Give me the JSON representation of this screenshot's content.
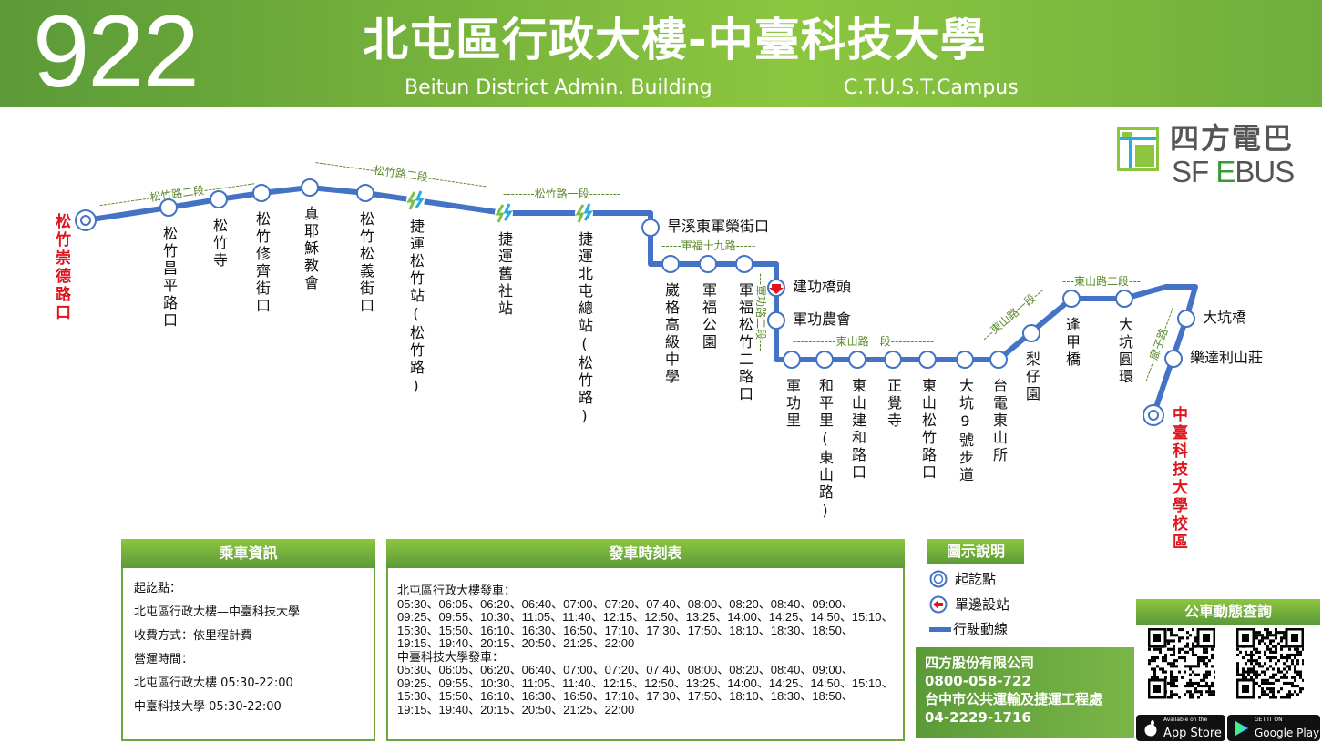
{
  "header": {
    "route_number": "922",
    "title": "北屯區行政大樓-中臺科技大學",
    "origin_en": "Beitun District Admin. Building",
    "destination_en": "C.T.U.S.T.Campus"
  },
  "logo": {
    "zh": "四方電巴",
    "en_prefix": "SF ",
    "en_e": "E",
    "en_suffix": "BUS"
  },
  "route": {
    "line_color": "#4472c4",
    "start": "松竹崇德路口",
    "end": "中臺科技大學校區",
    "stations": [
      "松竹昌平路口",
      "松竹寺",
      "松竹修齊街口",
      "真耶穌教會",
      "松竹松義街口",
      "捷運松竹站(松竹路)",
      "捷運舊社站",
      "捷運北屯總站(松竹路)",
      "旱溪東軍榮街口",
      "崴格高級中學",
      "軍福公園",
      "軍福松竹二路口",
      "建功橋頭",
      "軍功農會",
      "軍功里",
      "和平里(東山路)",
      "東山建和路口",
      "正覺寺",
      "東山松竹路口",
      "大坑9號步道",
      "台電東山所",
      "梨仔園",
      "逢甲橋",
      "大坑圓環",
      "大坑橋",
      "樂達利山莊"
    ],
    "one_way_station": "建功橋頭",
    "mrt_stations": [
      "捷運松竹站(松竹路)",
      "捷運舊社站",
      "捷運北屯總站(松竹路)"
    ],
    "roads": [
      "-------------松竹路二段-------------",
      "---------------松竹路二段---------------",
      "--------松竹路一段--------",
      "-----軍福十九路-----",
      "---軍功路二段---",
      "-----------東山路一段-----------",
      "---東山路一段---",
      "---東山路二段---",
      "------廍子路------"
    ]
  },
  "ride_info": {
    "heading": "乘車資訊",
    "lines": [
      "起訖點：",
      "北屯區行政大樓—中臺科技大學",
      "收費方式：依里程計費",
      "營運時間：",
      "北屯區行政大樓 05:30-22:00",
      "中臺科技大學 05:30-22:00"
    ]
  },
  "timetable": {
    "heading": "發車時刻表",
    "directions": [
      {
        "label": "北屯區行政大樓發車：",
        "times": "05:30、06:05、06:20、06:40、07:00、07:20、07:40、08:00、08:20、08:40、09:00、09:25、09:55、10:30、11:05、11:40、12:15、12:50、13:25、14:00、14:25、14:50、15:10、15:30、15:50、16:10、16:30、16:50、17:10、17:30、17:50、18:10、18:30、18:50、19:15、19:40、20:15、20:50、21:25、22:00"
      },
      {
        "label": "中臺科技大學發車：",
        "times": "05:30、06:05、06:20、06:40、07:00、07:20、07:40、08:00、08:20、08:40、09:00、09:25、09:55、10:30、11:05、11:40、12:15、12:50、13:25、14:00、14:25、14:50、15:10、15:30、15:50、16:10、16:30、16:50、17:10、17:30、17:50、18:10、18:30、18:50、19:15、19:40、20:15、20:50、21:25、22:00"
      }
    ]
  },
  "legend": {
    "heading": "圖示說明",
    "terminal": "起訖點",
    "one_way": "單邊設站",
    "route_line": "行駛動線"
  },
  "company": {
    "operator": "四方股份有限公司",
    "operator_phone": "0800-058-722",
    "authority": "台中市公共運輸及捷運工程處",
    "authority_phone": "04-2229-1716"
  },
  "bus_query": {
    "heading": "公車動態查詢",
    "app_store_small": "Available on the",
    "app_store": "App Store",
    "google_small": "GET IT ON",
    "google": "Google Play"
  }
}
